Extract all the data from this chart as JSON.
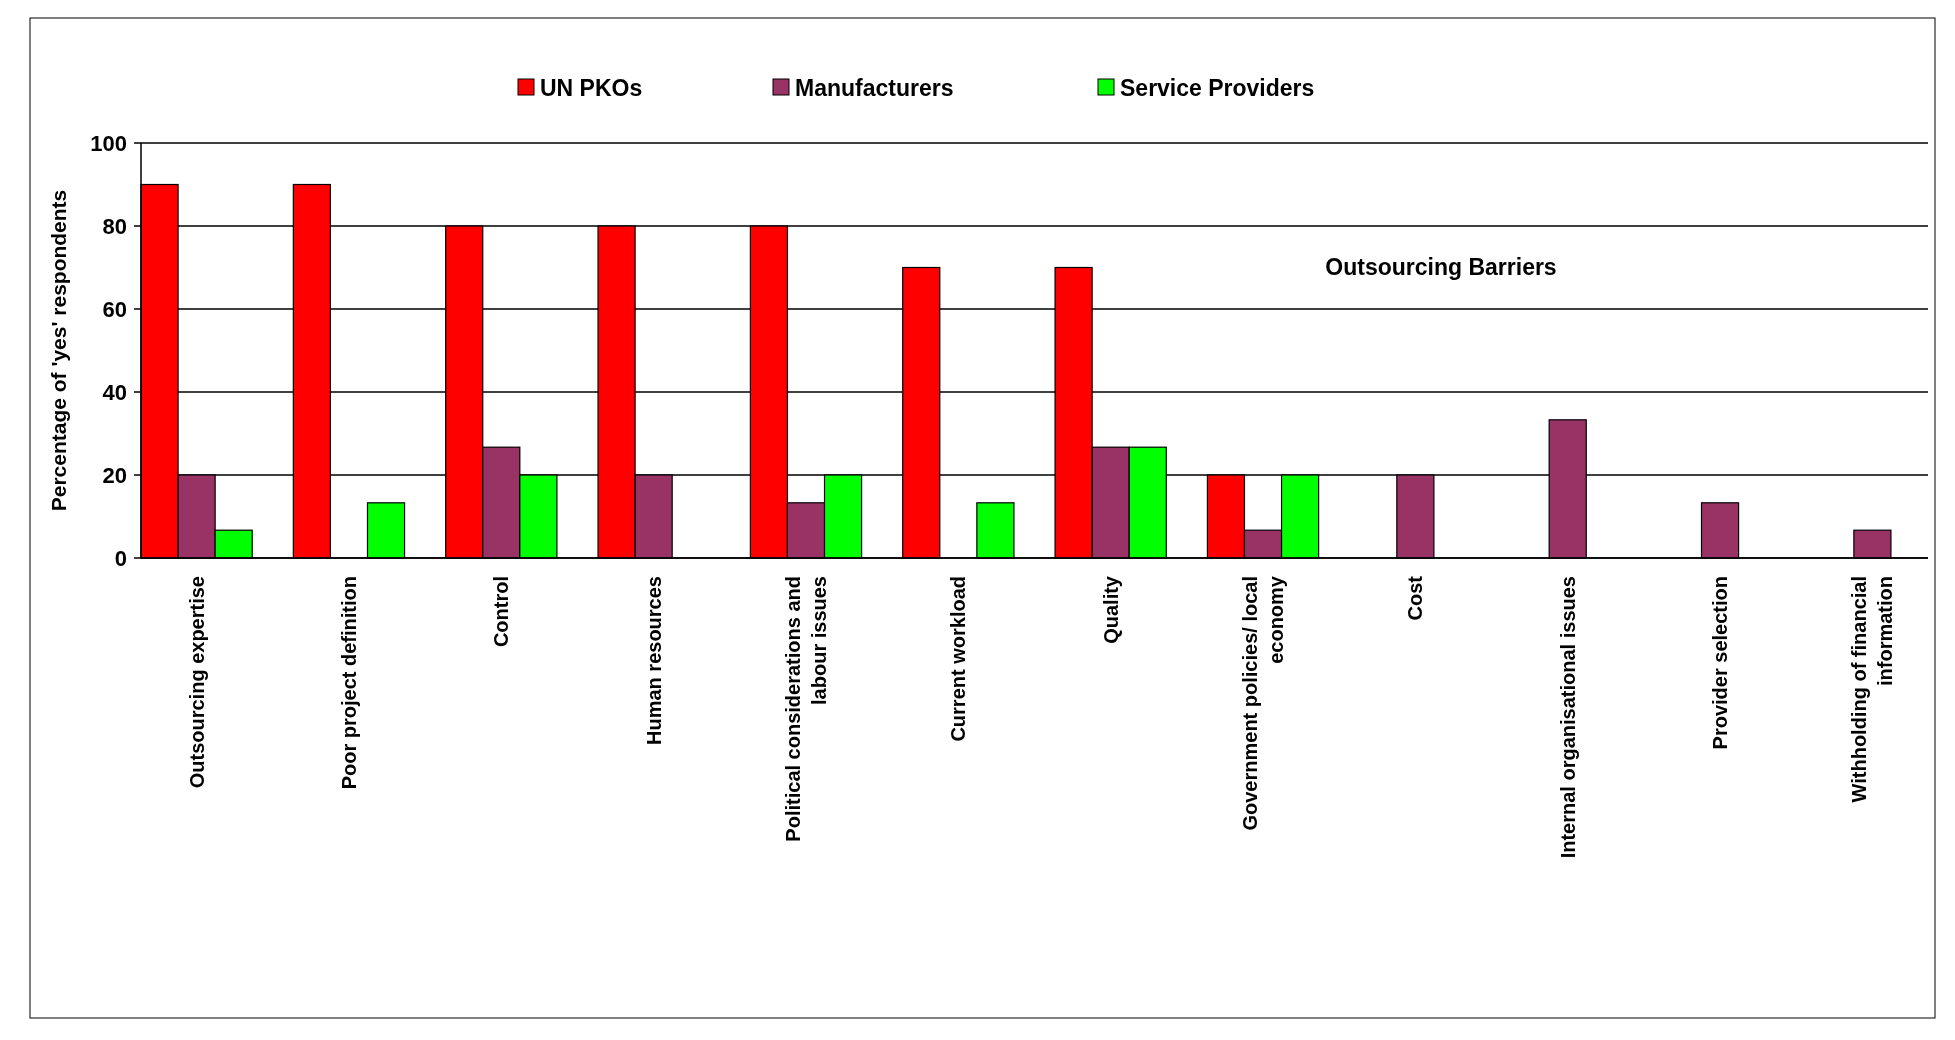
{
  "chart_data": {
    "type": "bar",
    "ylabel": "Percentage of  'yes' respondents",
    "categories": [
      "Outsourcing expertise",
      "Poor project definition",
      "Control",
      "Human resources",
      "Political considerations  and labour issues",
      "Current workload",
      "Quality",
      "Government policies/ local economy",
      "Cost",
      "Internal organisational issues",
      "Provider selection",
      "Withholding of financial information"
    ],
    "series": [
      {
        "name": "UN PKOs",
        "color": "#ff0000",
        "values": [
          90,
          90,
          80,
          80,
          80,
          70,
          70,
          20,
          null,
          null,
          null,
          null
        ]
      },
      {
        "name": "Manufacturers",
        "color": "#993366",
        "values": [
          20,
          null,
          26.7,
          20,
          13.3,
          null,
          26.7,
          6.7,
          20,
          33.3,
          13.3,
          6.7
        ]
      },
      {
        "name": "Service Providers",
        "color": "#00ff00",
        "values": [
          6.7,
          13.3,
          20,
          null,
          20,
          13.3,
          26.7,
          20,
          null,
          null,
          null,
          null
        ]
      }
    ],
    "ylim": [
      0,
      100
    ],
    "yticks": [
      0,
      20,
      40,
      60,
      80,
      100
    ],
    "grid": "y",
    "legend": "top",
    "annotations": [
      "Outsourcing Barriers"
    ]
  }
}
